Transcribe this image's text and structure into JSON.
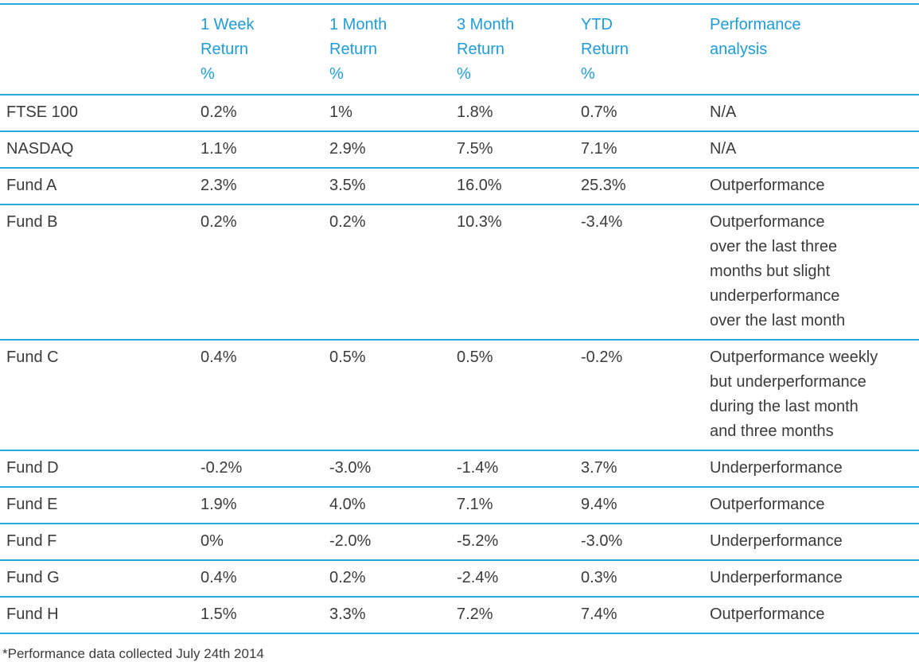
{
  "colors": {
    "header_text_blue": "#1f9cd8",
    "rule_line_blue": "#2ba7e0",
    "body_text": "#3b3b3c",
    "background": "#ffffff"
  },
  "table": {
    "headers": [
      "",
      "1 Week\nReturn\n%",
      "1 Month\nReturn\n%",
      "3 Month\nReturn\n%",
      "YTD\nReturn\n%",
      "Performance\nanalysis"
    ],
    "rows": [
      {
        "name": "FTSE 100",
        "week": "0.2%",
        "month": "1%",
        "three_month": "1.8%",
        "ytd": "0.7%",
        "analysis": "N/A"
      },
      {
        "name": "NASDAQ",
        "week": "1.1%",
        "month": "2.9%",
        "three_month": "7.5%",
        "ytd": "7.1%",
        "analysis": "N/A"
      },
      {
        "name": "Fund A",
        "week": "2.3%",
        "month": "3.5%",
        "three_month": "16.0%",
        "ytd": "25.3%",
        "analysis": "Outperformance"
      },
      {
        "name": "Fund B",
        "week": "0.2%",
        "month": "0.2%",
        "three_month": "10.3%",
        "ytd": "-3.4%",
        "analysis": "Outperformance\nover the last three\nmonths but slight\nunderperformance\nover the last month"
      },
      {
        "name": "Fund C",
        "week": "0.4%",
        "month": "0.5%",
        "three_month": "0.5%",
        "ytd": "-0.2%",
        "analysis": "Outperformance weekly\nbut underperformance\nduring the last month\nand three months"
      },
      {
        "name": "Fund D",
        "week": "-0.2%",
        "month": "-3.0%",
        "three_month": "-1.4%",
        "ytd": "3.7%",
        "analysis": "Underperformance"
      },
      {
        "name": "Fund E",
        "week": "1.9%",
        "month": "4.0%",
        "three_month": "7.1%",
        "ytd": "9.4%",
        "analysis": "Outperformance"
      },
      {
        "name": "Fund F",
        "week": "0%",
        "month": "-2.0%",
        "three_month": "-5.2%",
        "ytd": "-3.0%",
        "analysis": "Underperformance"
      },
      {
        "name": "Fund G",
        "week": "0.4%",
        "month": "0.2%",
        "three_month": "-2.4%",
        "ytd": "0.3%",
        "analysis": "Underperformance"
      },
      {
        "name": "Fund H",
        "week": "1.5%",
        "month": "3.3%",
        "three_month": "7.2%",
        "ytd": "7.4%",
        "analysis": "Outperformance"
      }
    ]
  },
  "footnote": "*Performance data collected July 24th 2014"
}
